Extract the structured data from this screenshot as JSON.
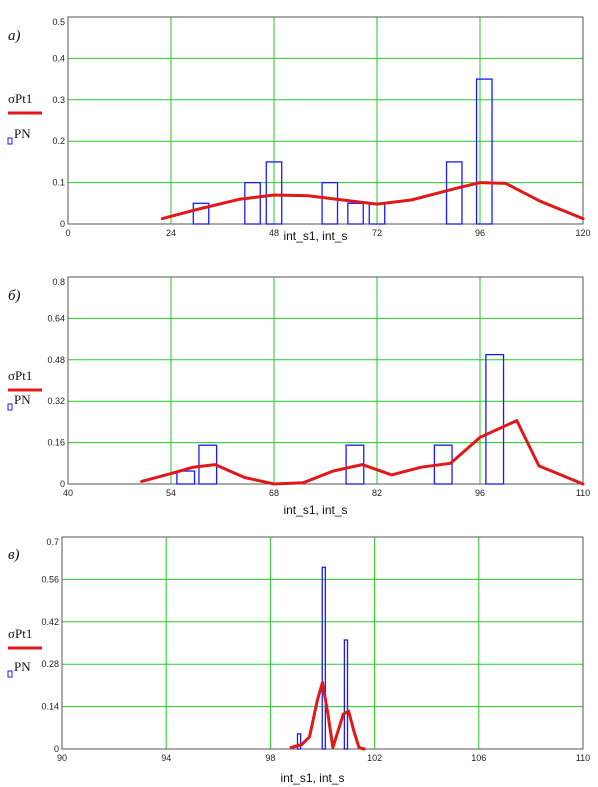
{
  "legend": {
    "red_series": "σPt1",
    "blue_series": "PN"
  },
  "colors": {
    "curve": "#e01818",
    "bars": "#1a1aff",
    "grid": "#22cc22",
    "frame": "#555555"
  },
  "chart_data": [
    {
      "type": "bar",
      "panel_label": "а)",
      "xlabel": "int_s1, int_s",
      "xlim": [
        0,
        120
      ],
      "ylim": [
        0,
        0.5
      ],
      "xticks": [
        "0",
        "24",
        "48",
        "72",
        "96",
        "120"
      ],
      "yticks": [
        "0",
        "0.1",
        "0.2",
        "0.3",
        "0.4",
        "0.5"
      ],
      "series": [
        {
          "name": "PN",
          "style": "bars",
          "x": [
            31,
            43,
            48,
            61,
            67,
            72,
            90,
            97
          ],
          "values": [
            0.05,
            0.1,
            0.15,
            0.1,
            0.05,
            0.05,
            0.15,
            0.35
          ],
          "bar_width": 3.6
        },
        {
          "name": "σPt1",
          "style": "line",
          "x": [
            22,
            30,
            40,
            48,
            56,
            64,
            72,
            80,
            90,
            96,
            102,
            110,
            120
          ],
          "values": [
            0.013,
            0.035,
            0.06,
            0.07,
            0.068,
            0.058,
            0.048,
            0.058,
            0.085,
            0.1,
            0.098,
            0.055,
            0.013
          ]
        }
      ]
    },
    {
      "type": "bar",
      "panel_label": "б)",
      "xlabel": "int_s1, int_s",
      "xlim": [
        40,
        110
      ],
      "ylim": [
        0,
        0.8
      ],
      "xticks": [
        "40",
        "54",
        "68",
        "82",
        "96",
        "110"
      ],
      "yticks": [
        "0",
        "0.16",
        "0.32",
        "0.48",
        "0.64",
        "0.8"
      ],
      "series": [
        {
          "name": "PN",
          "style": "bars",
          "x": [
            56,
            59,
            79,
            91,
            98
          ],
          "values": [
            0.05,
            0.15,
            0.15,
            0.15,
            0.5
          ],
          "bar_width": 2.4
        },
        {
          "name": "σPt1",
          "style": "line",
          "x": [
            50,
            54,
            57,
            60,
            64,
            68,
            72,
            76,
            80,
            84,
            88,
            92,
            96,
            101,
            104,
            110
          ],
          "values": [
            0.01,
            0.04,
            0.065,
            0.075,
            0.025,
            0.0,
            0.005,
            0.05,
            0.075,
            0.035,
            0.065,
            0.08,
            0.18,
            0.245,
            0.07,
            0.0
          ]
        }
      ]
    },
    {
      "type": "bar",
      "panel_label": "в)",
      "xlabel": "int_s1, int_s",
      "xlim": [
        90,
        110
      ],
      "ylim": [
        0,
        0.7
      ],
      "xticks": [
        "90",
        "94",
        "98",
        "102",
        "106",
        "110"
      ],
      "yticks": [
        "0",
        "0.14",
        "0.28",
        "0.42",
        "0.56",
        "0.7"
      ],
      "series": [
        {
          "name": "PN",
          "style": "bars",
          "x": [
            99.1,
            100.05,
            100.9
          ],
          "values": [
            0.05,
            0.6,
            0.36
          ],
          "bar_width": 0.12
        },
        {
          "name": "σPt1",
          "style": "line",
          "x": [
            98.8,
            99.2,
            99.5,
            99.8,
            100.0,
            100.2,
            100.4,
            100.6,
            100.8,
            101.0,
            101.2,
            101.4,
            101.6
          ],
          "values": [
            0.005,
            0.015,
            0.04,
            0.16,
            0.22,
            0.12,
            0.005,
            0.06,
            0.115,
            0.125,
            0.06,
            0.005,
            0.0
          ]
        }
      ]
    }
  ]
}
